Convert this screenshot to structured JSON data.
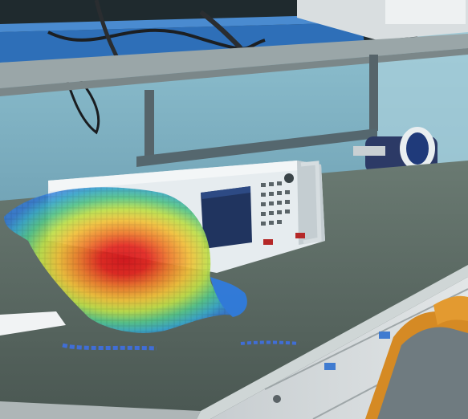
{
  "scene": {
    "kind": "photo",
    "elements": [
      "shelf",
      "equipment",
      "network-analyzer",
      "bench-top",
      "heatmap-overlay",
      "chair",
      "drawers"
    ]
  },
  "colors": {
    "wall": "#7fb4c4",
    "wall_light": "#a9d0dc",
    "shelf": "#9aa6a8",
    "bench_top": "#5b6a61",
    "bench_edge": "#cfd6d6",
    "instrument_body": "#e6ecef",
    "instrument_screen": "#20345f",
    "heatmap_hot": "#e5261f",
    "heatmap_warm": "#f2a23a",
    "heatmap_mid": "#e2e24a",
    "heatmap_cool": "#56c58a",
    "heatmap_cold": "#2f7ce0",
    "chair_frame": "#d58a24",
    "chair_seat": "#6f7b80"
  }
}
